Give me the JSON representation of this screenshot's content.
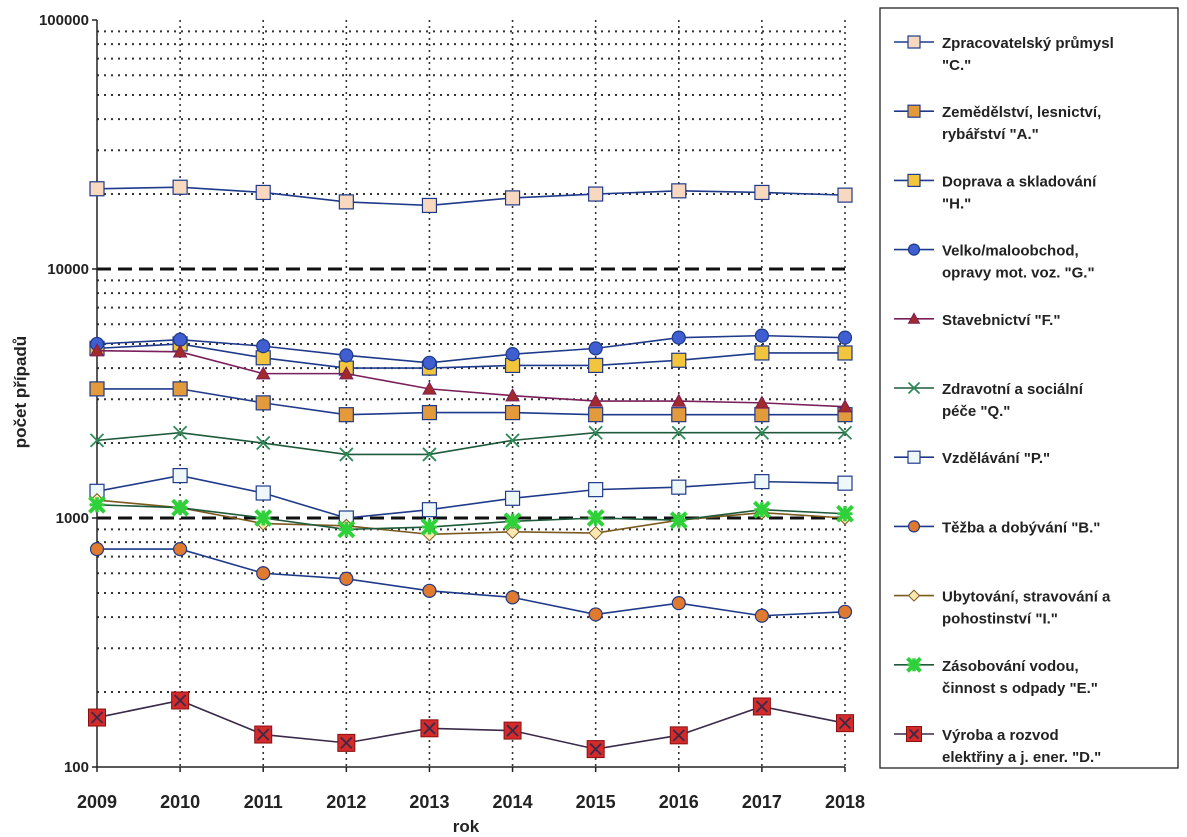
{
  "chart_data": {
    "type": "line",
    "title": "",
    "xlabel": "rok",
    "ylabel": "počet případů",
    "y_scale": "log",
    "ylim": [
      100,
      100000
    ],
    "y_ticks": [
      "100",
      "1000",
      "10000",
      "100000"
    ],
    "x": [
      "2009",
      "2010",
      "2011",
      "2012",
      "2013",
      "2014",
      "2015",
      "2016",
      "2017",
      "2018"
    ],
    "grid": true,
    "legend_position": "right",
    "series": [
      {
        "name": "Zpracovatelský průmysl \"C.\"",
        "legend_lines": [
          "Zpracovatelský průmysl",
          "\"C.\""
        ],
        "color": "#1f3a8a",
        "fill": "#f8d9c0",
        "marker": "square",
        "values": [
          21000,
          21300,
          20300,
          18600,
          18000,
          19300,
          20000,
          20600,
          20300,
          19800
        ]
      },
      {
        "name": "Zemědělství, lesnictví, rybářství \"A.\"",
        "legend_lines": [
          "Zemědělství, lesnictví,",
          "rybářství \"A.\""
        ],
        "color": "#1f3a8a",
        "fill": "#e39a3a",
        "marker": "square",
        "values": [
          3300,
          3300,
          2900,
          2600,
          2650,
          2650,
          2600,
          2600,
          2600,
          2600
        ]
      },
      {
        "name": "Doprava a skladování \"H.\"",
        "legend_lines": [
          "Doprava a skladování",
          "\"H.\""
        ],
        "color": "#1f3a8a",
        "fill": "#f2c53d",
        "marker": "square",
        "values": [
          4800,
          5000,
          4400,
          4000,
          4000,
          4100,
          4100,
          4300,
          4600,
          4600
        ]
      },
      {
        "name": "Velko/maloobchod, opravy mot. voz. \"G.\"",
        "legend_lines": [
          "Velko/maloobchod,",
          "opravy mot. voz. \"G.\""
        ],
        "color": "#1f3a8a",
        "fill": "#3f5fd0",
        "marker": "circle",
        "values": [
          5000,
          5200,
          4900,
          4500,
          4200,
          4550,
          4800,
          5300,
          5400,
          5300
        ]
      },
      {
        "name": "Stavebnictví \"F.\"",
        "legend_lines": [
          "Stavebnictví \"F.\""
        ],
        "color": "#7b1f5a",
        "fill": "#a32a2a",
        "marker": "triangle",
        "values": [
          4700,
          4650,
          3800,
          3800,
          3300,
          3100,
          2950,
          2950,
          2900,
          2800
        ]
      },
      {
        "name": "Zdravotní a sociální péče \"Q.\"",
        "legend_lines": [
          "Zdravotní a sociální",
          "péče \"Q.\""
        ],
        "color": "#1f5a3a",
        "fill": "#2e8b57",
        "marker": "x",
        "values": [
          2050,
          2200,
          2000,
          1800,
          1800,
          2050,
          2200,
          2200,
          2200,
          2200
        ]
      },
      {
        "name": "Vzdělávání \"P.\"",
        "legend_lines": [
          "Vzdělávání \"P.\""
        ],
        "color": "#1f3a8a",
        "fill": "#eef8fb",
        "marker": "square",
        "values": [
          1280,
          1480,
          1260,
          1000,
          1080,
          1200,
          1300,
          1330,
          1400,
          1380
        ]
      },
      {
        "name": "Těžba a dobývání \"B.\"",
        "legend_lines": [
          "Těžba a dobývání \"B.\""
        ],
        "color": "#1f3a8a",
        "fill": "#e07a2e",
        "marker": "circle",
        "values": [
          750,
          750,
          600,
          570,
          510,
          480,
          410,
          455,
          405,
          420
        ]
      },
      {
        "name": "Ubytování, stravování a pohostinství \"I.\"",
        "legend_lines": [
          "Ubytování, stravování a",
          "pohostinství \"I.\""
        ],
        "color": "#7a5a1f",
        "fill": "#fbe8b0",
        "marker": "diamond",
        "values": [
          1180,
          1100,
          950,
          930,
          860,
          880,
          870,
          980,
          1050,
          1000
        ]
      },
      {
        "name": "Zásobování vodou, činnost s odpady \"E.\"",
        "legend_lines": [
          "Zásobování vodou,",
          "činnost s odpady \"E.\""
        ],
        "color": "#1f5a3a",
        "fill": "#2fd13a",
        "marker": "star",
        "values": [
          1130,
          1100,
          1000,
          900,
          920,
          970,
          1000,
          980,
          1080,
          1040
        ]
      },
      {
        "name": "Výroba a rozvod elektřiny a j. ener. \"D.\"",
        "legend_lines": [
          "Výroba a rozvod",
          "elektřiny a j. ener. \"D.\""
        ],
        "color": "#3a2a4a",
        "fill": "#d42a2a",
        "marker": "xsquare",
        "values": [
          158,
          185,
          135,
          125,
          143,
          140,
          118,
          134,
          175,
          150
        ]
      }
    ]
  }
}
